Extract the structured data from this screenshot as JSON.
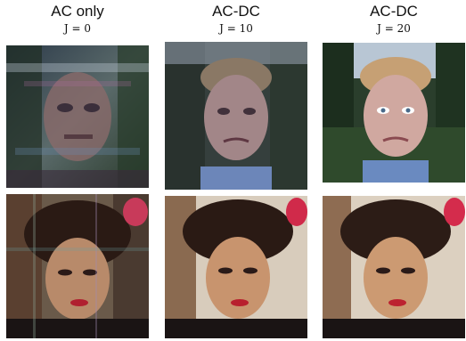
{
  "columns": [
    {
      "title": "AC only",
      "subtitle": "J = 0"
    },
    {
      "title": "AC-DC",
      "subtitle": "J = 10"
    },
    {
      "title": "AC-DC",
      "subtitle": "J = 20"
    }
  ],
  "images": {
    "row1": [
      "man-face-scrambled",
      "man-face-partially-reconstructed",
      "man-face-reconstructed"
    ],
    "row2": [
      "woman-face-noisy",
      "woman-face-reconstructed",
      "woman-face-reconstructed-clean"
    ]
  }
}
